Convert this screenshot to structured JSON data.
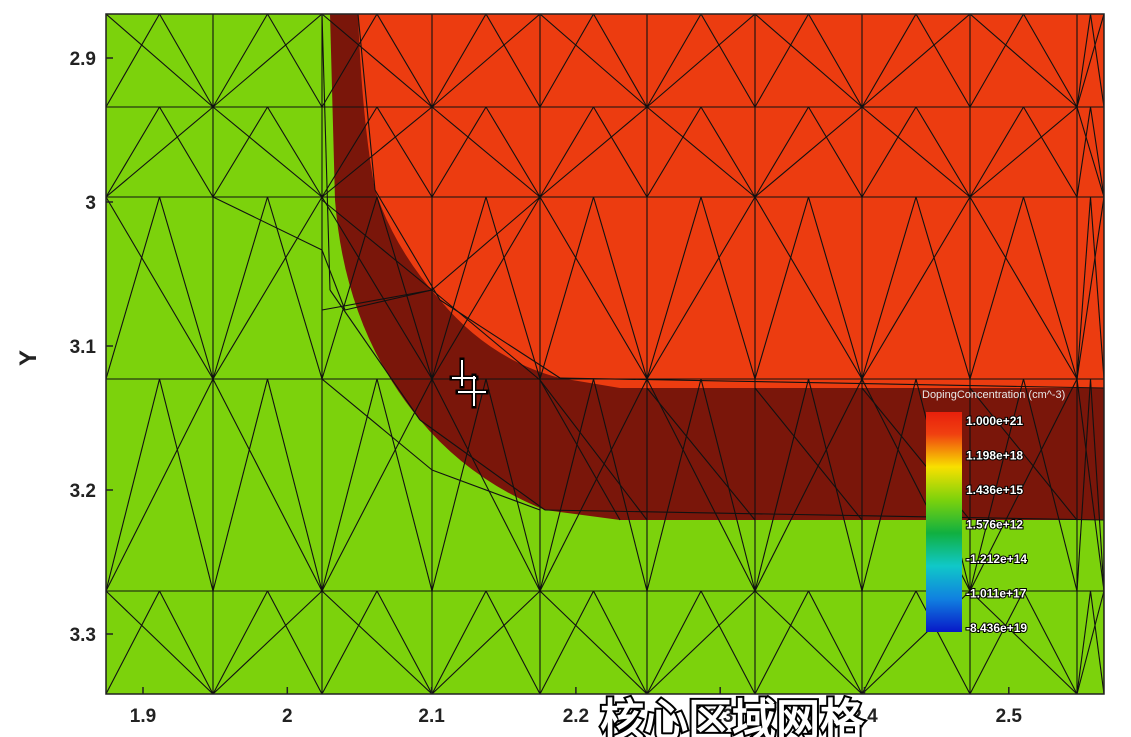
{
  "y_axis": {
    "title": "Y",
    "ticks": [
      {
        "label": "2.9",
        "value": 2.9
      },
      {
        "label": "3",
        "value": 3.0
      },
      {
        "label": "3.1",
        "value": 3.1
      },
      {
        "label": "3.2",
        "value": 3.2
      },
      {
        "label": "3.3",
        "value": 3.3
      }
    ]
  },
  "x_axis": {
    "ticks": [
      {
        "label": "1.9",
        "value": 1.9
      },
      {
        "label": "2",
        "value": 2.0
      },
      {
        "label": "2.1",
        "value": 2.1
      },
      {
        "label": "2.2",
        "value": 2.2
      },
      {
        "label": "2.3",
        "value": 2.3
      },
      {
        "label": "2.4",
        "value": 2.4
      },
      {
        "label": "2.5",
        "value": 2.5
      }
    ]
  },
  "legend": {
    "title": "DopingConcentration (cm^-3)",
    "labels": [
      "1.000e+21",
      "1.198e+18",
      "1.436e+15",
      "1.576e+12",
      "-1.212e+14",
      "-1.011e+17",
      "-8.436e+19"
    ]
  },
  "caption": "核心区域网格",
  "colors": {
    "n_type": "#ec3c10",
    "junction": "#7a160a",
    "p_type": "#7cd20c",
    "mesh_line": "#111111"
  },
  "cursor_icon": "crosshair-move-icon"
}
